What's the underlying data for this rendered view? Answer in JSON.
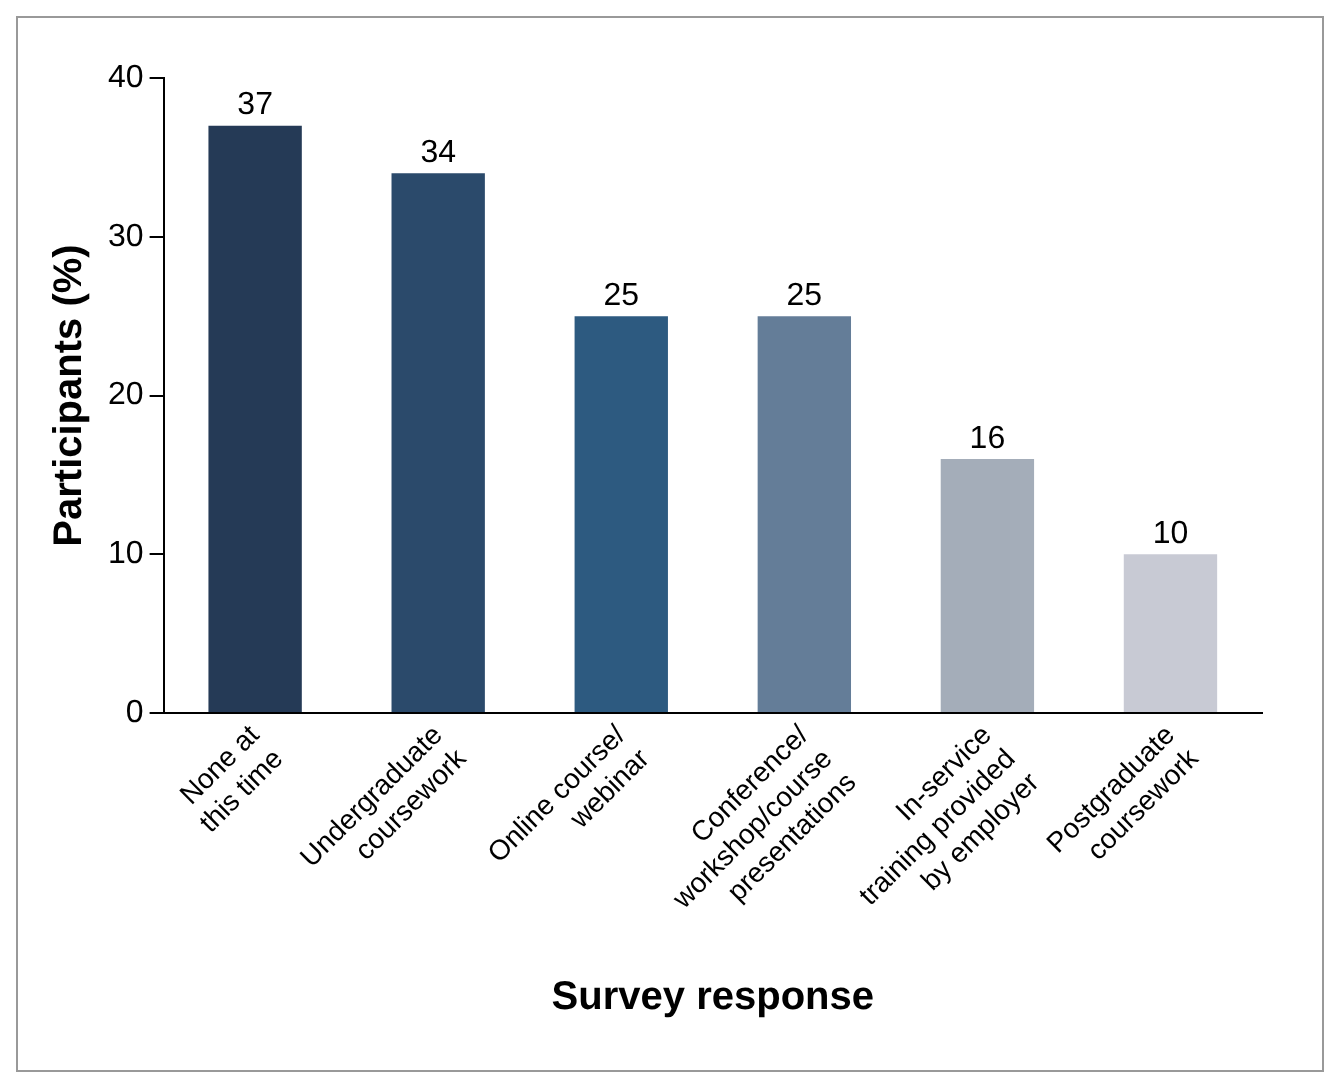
{
  "chart_data": {
    "type": "bar",
    "xlabel": "Survey response",
    "ylabel": "Participants (%)",
    "categories": [
      "None at\nthis time",
      "Undergraduate\ncoursework",
      "Online course/\nwebinar",
      "Conference/\nworkshop/course\npresentations",
      "In-service\ntraining provided\nby employer",
      "Postgraduate\ncoursework"
    ],
    "values": [
      37,
      34,
      25,
      25,
      16,
      10
    ],
    "colors": [
      "#253a56",
      "#2b4a6b",
      "#2d5a80",
      "#647d98",
      "#a4adb9",
      "#c8cad4"
    ],
    "ylim": [
      0,
      40
    ],
    "yticks": [
      0,
      10,
      20,
      30,
      40
    ],
    "grid": false,
    "legend": false,
    "data_labels": true
  }
}
